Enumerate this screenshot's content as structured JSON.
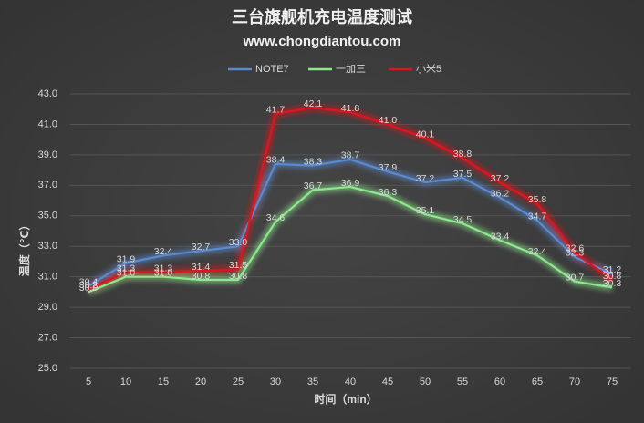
{
  "chart_data": {
    "type": "line",
    "title": "三台旗舰机充电温度测试",
    "subtitle": "www.chongdiantou.com",
    "x_label": "时间（min）",
    "y_label": "温度（℃）",
    "categories": [
      "5",
      "10",
      "15",
      "20",
      "25",
      "30",
      "35",
      "40",
      "45",
      "50",
      "55",
      "60",
      "65",
      "70",
      "75"
    ],
    "ylim": [
      25,
      43
    ],
    "yticks": [
      {
        "value": 25,
        "label": "25.0"
      },
      {
        "value": 27,
        "label": "27.0"
      },
      {
        "value": 29,
        "label": "29.0"
      },
      {
        "value": 31,
        "label": "31.0"
      },
      {
        "value": 33,
        "label": "33.0"
      },
      {
        "value": 35,
        "label": "35.0"
      },
      {
        "value": 37,
        "label": "37.0"
      },
      {
        "value": 39,
        "label": "39.0"
      },
      {
        "value": 41,
        "label": "41.0"
      },
      {
        "value": 43,
        "label": "43.0"
      }
    ],
    "grid": true,
    "legend": "top",
    "series": [
      {
        "name": "NOTE7",
        "color": "#5a8ad0",
        "values": [
          30.4,
          31.9,
          32.4,
          32.7,
          33.0,
          38.4,
          38.3,
          38.7,
          37.9,
          37.2,
          37.5,
          36.2,
          34.7,
          32.3,
          31.2
        ],
        "value_labels": [
          "30.4",
          "31.9",
          "32.4",
          "32.7",
          "33.0",
          "38.4",
          "38.3",
          "38.7",
          "37.9",
          "37.2",
          "37.5",
          "36.2",
          "34.7",
          "32.3",
          "31.2"
        ]
      },
      {
        "name": "一加三",
        "color": "#8ee88e",
        "values": [
          30.0,
          31.0,
          31.0,
          30.8,
          30.8,
          34.6,
          36.7,
          36.9,
          36.3,
          35.1,
          34.5,
          33.4,
          32.4,
          30.7,
          30.3
        ],
        "value_labels": [
          "30.0",
          "31.0",
          "31.0",
          "30.8",
          "30.8",
          "34.6",
          "36.7",
          "36.9",
          "36.3",
          "35.1",
          "34.5",
          "33.4",
          "32.4",
          "30.7",
          "30.3"
        ]
      },
      {
        "name": "小米5",
        "color": "#e0141e",
        "values": [
          30.2,
          31.3,
          31.3,
          31.4,
          31.5,
          41.7,
          42.1,
          41.8,
          41.0,
          40.1,
          38.8,
          37.2,
          35.8,
          32.6,
          30.8
        ],
        "value_labels": [
          "30.2",
          "31.3",
          "31.3",
          "31.4",
          "31.5",
          "41.7",
          "42.1",
          "41.8",
          "41.0",
          "40.1",
          "38.8",
          "37.2",
          "35.8",
          "32.6",
          "30.8"
        ]
      }
    ]
  }
}
